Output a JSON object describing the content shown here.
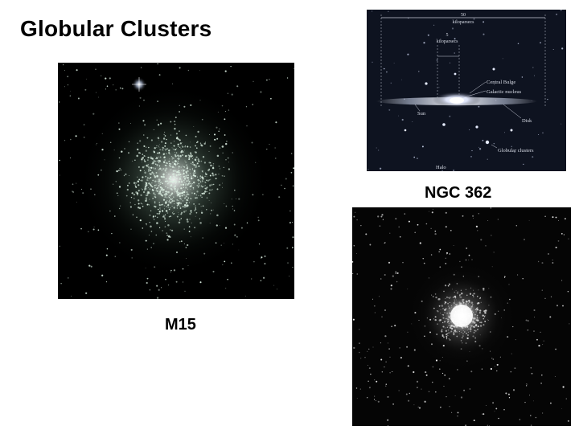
{
  "slide": {
    "title": "Globular Clusters"
  },
  "images": {
    "m15": {
      "caption": "M15"
    },
    "ngc362": {
      "caption": "NGC 362"
    },
    "galaxy_diagram": {
      "scale_outer_value": "50",
      "scale_outer_unit": "kiloparsecs",
      "scale_inner_value": "5",
      "scale_inner_unit": "kiloparsecs",
      "labels": {
        "central_bulge": "Central Bulge",
        "galactic_nucleus": "Galactic nucleus",
        "sun": "Sun",
        "disk": "Disk",
        "globular_clusters": "Globular clusters",
        "halo": "Halo"
      }
    }
  },
  "colors": {
    "background": "#ffffff",
    "text": "#000000",
    "photo_bg": "#000000",
    "diagram_bg": "#0e1320"
  }
}
